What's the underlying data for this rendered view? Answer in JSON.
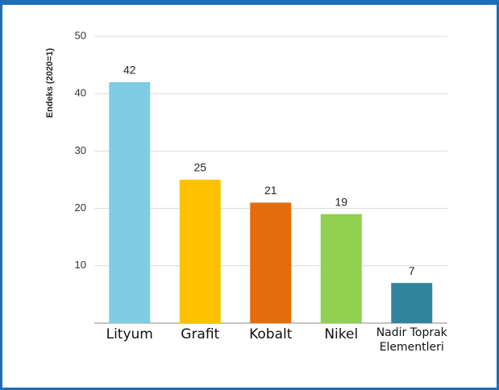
{
  "chart_data": {
    "type": "bar",
    "y_label": "Endeks (2020=1)",
    "categories": [
      "Lityum",
      "Grafit",
      "Kobalt",
      "Nikel",
      "Nadir Toprak Elementleri"
    ],
    "values": [
      42,
      25,
      21,
      19,
      7
    ],
    "colors": [
      "#7ecde3",
      "#ffc000",
      "#e46c0a",
      "#92d050",
      "#31849b"
    ],
    "ylim": [
      0,
      50
    ],
    "yticks": [
      10,
      20,
      30,
      40,
      50
    ],
    "grid": true
  }
}
